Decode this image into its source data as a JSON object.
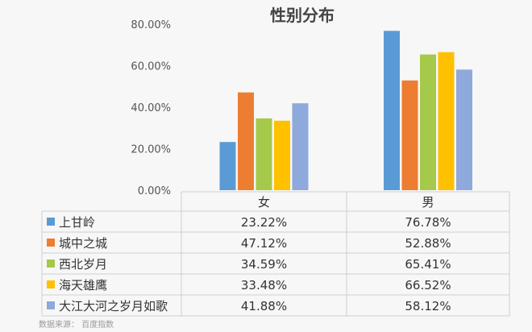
{
  "chart_data": {
    "type": "bar",
    "title": "性别分布",
    "categories": [
      "女",
      "男"
    ],
    "ylim": [
      0,
      80
    ],
    "yticks": [
      "0.00%",
      "20.00%",
      "40.00%",
      "60.00%",
      "80.00%"
    ],
    "grid": false,
    "legend": "left-table",
    "series": [
      {
        "name": "上甘岭",
        "color": "#5B9BD5",
        "values": [
          23.22,
          76.78
        ],
        "labels": [
          "23.22%",
          "76.78%"
        ]
      },
      {
        "name": "城中之城",
        "color": "#ED7D31",
        "values": [
          47.12,
          52.88
        ],
        "labels": [
          "47.12%",
          "52.88%"
        ]
      },
      {
        "name": "西北岁月",
        "color": "#A5C94A",
        "values": [
          34.59,
          65.41
        ],
        "labels": [
          "34.59%",
          "65.41%"
        ]
      },
      {
        "name": "海天雄鹰",
        "color": "#FFC000",
        "values": [
          33.48,
          66.52
        ],
        "labels": [
          "33.48%",
          "66.52%"
        ]
      },
      {
        "name": "大江大河之岁月如歌",
        "color": "#8EA9DB",
        "values": [
          41.88,
          58.12
        ],
        "labels": [
          "41.88%",
          "58.12%"
        ]
      }
    ],
    "source": "数据来源：  百度指数"
  }
}
